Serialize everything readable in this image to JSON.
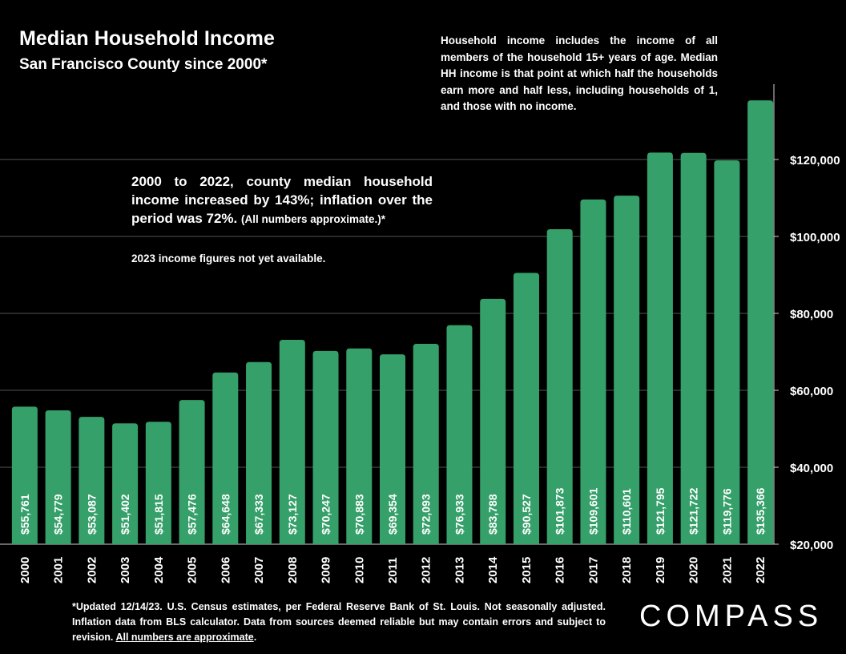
{
  "title": "Median Household Income",
  "subtitle": "San Francisco County since 2000*",
  "note_top": "Household income includes the income of all members of the household 15+ years of age. Median HH income is that point at which half the households earn more and half less, including households of 1, and those with no income.",
  "note_mid_main": "2000 to 2022, county median household income increased by 143%; inflation over the period was 72%.",
  "note_mid_small": "(All numbers approximate.)*",
  "note_2023": "2023 income figures not yet available.",
  "footnote_main": "*Updated 12/14/23. U.S. Census estimates, per Federal Reserve Bank of St. Louis. Not seasonally adjusted. Inflation data from BLS calculator. Data from sources deemed reliable but may contain errors and subject to revision.",
  "footnote_link": "All numbers are approximate",
  "footnote_end": ".",
  "logo": "COMPASS",
  "colors": {
    "bar": "#36a06a",
    "background": "#000000",
    "grid": "#555555",
    "text": "#ffffff"
  },
  "chart_data": {
    "type": "bar",
    "title": "Median Household Income",
    "subtitle": "San Francisco County since 2000*",
    "xlabel": "",
    "ylabel": "",
    "ylim": [
      20000,
      140000
    ],
    "grid": true,
    "y_axis_side": "right",
    "y_ticks": [
      20000,
      40000,
      60000,
      80000,
      100000,
      120000
    ],
    "y_tick_labels": [
      "$20,000",
      "$40,000",
      "$60,000",
      "$80,000",
      "$100,000",
      "$120,000"
    ],
    "categories": [
      "2000",
      "2001",
      "2002",
      "2003",
      "2004",
      "2005",
      "2006",
      "2007",
      "2008",
      "2009",
      "2010",
      "2011",
      "2012",
      "2013",
      "2014",
      "2015",
      "2016",
      "2017",
      "2018",
      "2019",
      "2020",
      "2021",
      "2022"
    ],
    "values": [
      55761,
      54779,
      53087,
      51402,
      51815,
      57476,
      64648,
      67333,
      73127,
      70247,
      70883,
      69354,
      72093,
      76933,
      83788,
      90527,
      101873,
      109601,
      110601,
      121795,
      121722,
      119776,
      135366
    ],
    "value_labels": [
      "$55,761",
      "$54,779",
      "$53,087",
      "$51,402",
      "$51,815",
      "$57,476",
      "$64,648",
      "$67,333",
      "$73,127",
      "$70,247",
      "$70,883",
      "$69,354",
      "$72,093",
      "$76,933",
      "$83,788",
      "$90,527",
      "$101,873",
      "$109,601",
      "$110,601",
      "$121,795",
      "$121,722",
      "$119,776",
      "$135,366"
    ]
  }
}
